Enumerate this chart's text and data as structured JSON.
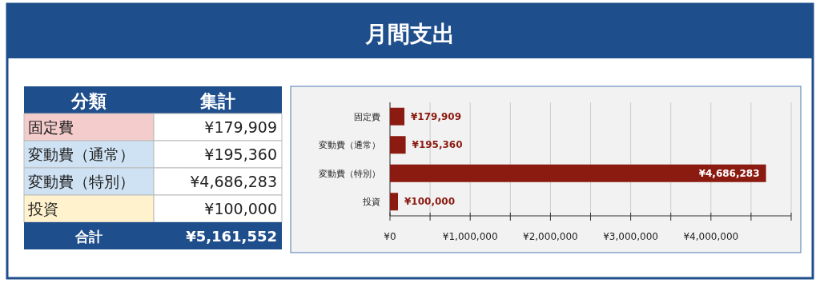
{
  "chart_data": {
    "type": "bar",
    "orientation": "horizontal",
    "title": "月間支出",
    "categories": [
      "固定費",
      "変動費（通常）",
      "変動費（特別）",
      "投資"
    ],
    "values": [
      179909,
      195360,
      4686283,
      100000
    ],
    "value_labels": [
      "¥179,909",
      "¥195,360",
      "¥4,686,283",
      "¥100,000"
    ],
    "color": "#8b1a10",
    "xlim": [
      0,
      5000000
    ],
    "xticks": [
      {
        "value": 0,
        "label": "¥0"
      },
      {
        "value": 500000,
        "label": null
      },
      {
        "value": 1000000,
        "label": "¥1,000,000"
      },
      {
        "value": 1500000,
        "label": null
      },
      {
        "value": 2000000,
        "label": "¥2,000,000"
      },
      {
        "value": 2500000,
        "label": null
      },
      {
        "value": 3000000,
        "label": "¥3,000,000"
      },
      {
        "value": 3500000,
        "label": null
      },
      {
        "value": 4000000,
        "label": "¥4,000,000"
      },
      {
        "value": 4500000,
        "label": null
      },
      {
        "value": 5000000,
        "label": null
      }
    ],
    "grid": "x",
    "annotations": [
      "分類",
      "集計",
      "合計",
      "¥5,161,552"
    ]
  }
}
